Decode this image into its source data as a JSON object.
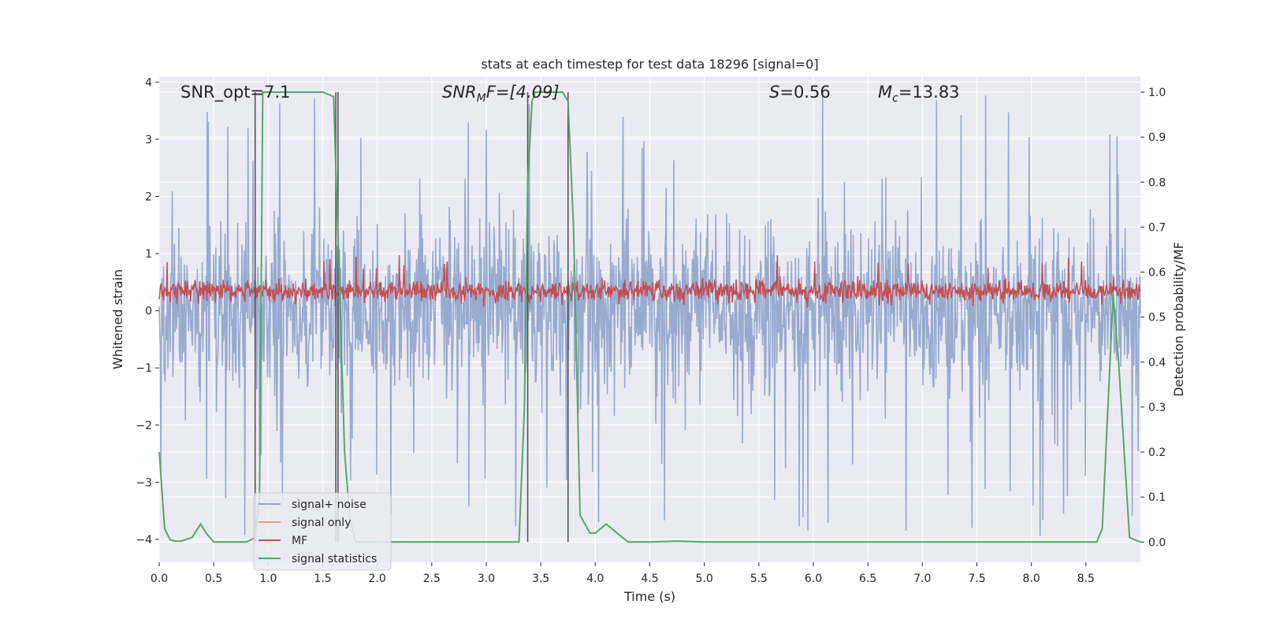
{
  "chart_data": {
    "type": "line",
    "title": "stats at each timestep for test data 18296 [signal=0]",
    "xlabel": "Time (s)",
    "ylabel_left": "Whitened strain",
    "ylabel_right": "Detection probability/MF",
    "xlim": [
      0.0,
      9.0
    ],
    "ylim_left": [
      -4.4,
      4.1
    ],
    "ylim_right": [
      -0.045,
      1.035
    ],
    "x_ticks": [
      "0.0",
      "0.5",
      "1.0",
      "1.5",
      "2.0",
      "2.5",
      "3.0",
      "3.5",
      "4.0",
      "4.5",
      "5.0",
      "5.5",
      "6.0",
      "6.5",
      "7.0",
      "7.5",
      "8.0",
      "8.5"
    ],
    "x_tick_values": [
      0.0,
      0.5,
      1.0,
      1.5,
      2.0,
      2.5,
      3.0,
      3.5,
      4.0,
      4.5,
      5.0,
      5.5,
      6.0,
      6.5,
      7.0,
      7.5,
      8.0,
      8.5
    ],
    "y_ticks_left": [
      "4",
      "3",
      "2",
      "1",
      "0",
      "−1",
      "−2",
      "−3",
      "−4"
    ],
    "y_tick_values_left": [
      4,
      3,
      2,
      1,
      0,
      -1,
      -2,
      -3,
      -4
    ],
    "y_ticks_right": [
      "1.0",
      "0.9",
      "0.8",
      "0.7",
      "0.6",
      "0.5",
      "0.4",
      "0.3",
      "0.2",
      "0.1",
      "0.0"
    ],
    "y_tick_values_right": [
      1.0,
      0.9,
      0.8,
      0.7,
      0.6,
      0.5,
      0.4,
      0.3,
      0.2,
      0.1,
      0.0
    ],
    "grid": true,
    "legend_position": "lower-left",
    "annotations": {
      "snr_opt": "SNR_opt=7.1",
      "snr_mf_base": "SNR",
      "snr_mf_sub": "M",
      "snr_mf_rest": "F=[4.09]",
      "s_var": "S",
      "s_val": "=0.56",
      "mc_var": "M",
      "mc_sub": "c",
      "mc_val": "=13.83"
    },
    "noise": {
      "name": "signal+ noise",
      "color": "#94a7cc",
      "sample_count": 1800,
      "typical_range": [
        -2.2,
        2.3
      ],
      "extreme_range": [
        -4.0,
        3.8
      ]
    },
    "signal_only": {
      "name": "signal only",
      "color": "#e8a07e",
      "values": []
    },
    "mf": {
      "name": "MF",
      "color": "#c44e52",
      "axis": "left",
      "typical_range": [
        0.0,
        0.7
      ],
      "peak": 0.98
    },
    "signal_statistics": {
      "name": "signal statistics",
      "color": "#55a868",
      "axis": "right",
      "x": [
        0.0,
        0.05,
        0.1,
        0.15,
        0.2,
        0.3,
        0.38,
        0.43,
        0.5,
        0.6,
        0.8,
        0.88,
        0.92,
        0.95,
        1.5,
        1.6,
        1.65,
        1.7,
        1.75,
        1.8,
        2.0,
        2.5,
        3.0,
        3.3,
        3.35,
        3.38,
        3.42,
        3.45,
        3.7,
        3.75,
        3.8,
        3.86,
        3.95,
        4.0,
        4.1,
        4.15,
        4.25,
        4.3,
        4.5,
        4.75,
        5.0,
        6.0,
        7.0,
        8.0,
        8.6,
        8.65,
        8.75,
        8.8,
        8.9,
        9.0
      ],
      "y": [
        0.2,
        0.03,
        0.005,
        0.002,
        0.002,
        0.01,
        0.04,
        0.02,
        0.0,
        0.0,
        0.0,
        0.01,
        0.1,
        1.0,
        1.0,
        0.99,
        0.6,
        0.2,
        0.05,
        0.0,
        0.0,
        0.0,
        0.0,
        0.0,
        0.3,
        0.8,
        0.98,
        1.0,
        1.0,
        0.98,
        0.7,
        0.06,
        0.02,
        0.02,
        0.04,
        0.03,
        0.01,
        0.0,
        0.0,
        0.002,
        0.0,
        0.0,
        0.0,
        0.0,
        0.0,
        0.03,
        0.55,
        0.4,
        0.01,
        0.0
      ]
    },
    "vertical_markers": {
      "color": "#555555",
      "x": [
        0.88,
        1.62,
        1.64,
        3.38,
        3.75
      ]
    },
    "legend": [
      {
        "label": "signal+ noise",
        "color": "#94a7cc"
      },
      {
        "label": "signal only",
        "color": "#e8a07e"
      },
      {
        "label": "MF",
        "color": "#c44e52"
      },
      {
        "label": "signal statistics",
        "color": "#55a868"
      }
    ]
  }
}
